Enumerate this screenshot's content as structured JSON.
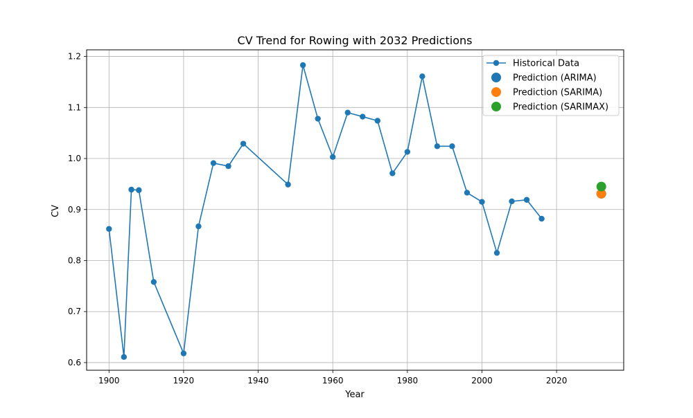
{
  "chart_data": {
    "type": "line",
    "title": "CV Trend for Rowing with 2032 Predictions",
    "xlabel": "Year",
    "ylabel": "CV",
    "xlim": [
      1894,
      2038
    ],
    "ylim": [
      0.585,
      1.213
    ],
    "xticks": [
      1900,
      1920,
      1940,
      1960,
      1980,
      2000,
      2020
    ],
    "yticks": [
      0.6,
      0.7,
      0.8,
      0.9,
      1.0,
      1.1,
      1.2
    ],
    "xtick_labels": [
      "1900",
      "1920",
      "1940",
      "1960",
      "1980",
      "2000",
      "2020"
    ],
    "ytick_labels": [
      "0.6",
      "0.7",
      "0.8",
      "0.9",
      "1.0",
      "1.1",
      "1.2"
    ],
    "grid": true,
    "legend_position": "top-right",
    "series": [
      {
        "name": "Historical Data",
        "kind": "line-markers",
        "color": "#1f77b4",
        "x": [
          1900,
          1904,
          1906,
          1908,
          1912,
          1920,
          1924,
          1928,
          1932,
          1936,
          1948,
          1952,
          1956,
          1960,
          1964,
          1968,
          1972,
          1976,
          1980,
          1984,
          1988,
          1992,
          1996,
          2000,
          2004,
          2008,
          2012,
          2016
        ],
        "y": [
          0.862,
          0.611,
          0.939,
          0.938,
          0.758,
          0.618,
          0.867,
          0.991,
          0.985,
          1.029,
          0.949,
          1.183,
          1.078,
          1.003,
          1.09,
          1.082,
          1.074,
          0.971,
          1.013,
          1.161,
          1.024,
          1.024,
          0.933,
          0.915,
          0.815,
          0.916,
          0.919,
          0.882
        ]
      },
      {
        "name": "Prediction (ARIMA)",
        "kind": "point",
        "color": "#1f77b4",
        "x": [
          2032
        ],
        "y": [
          0.931
        ]
      },
      {
        "name": "Prediction (SARIMA)",
        "kind": "point",
        "color": "#ff7f0e",
        "x": [
          2032
        ],
        "y": [
          0.931
        ]
      },
      {
        "name": "Prediction (SARIMAX)",
        "kind": "point",
        "color": "#2ca02c",
        "x": [
          2032
        ],
        "y": [
          0.945
        ]
      }
    ]
  }
}
